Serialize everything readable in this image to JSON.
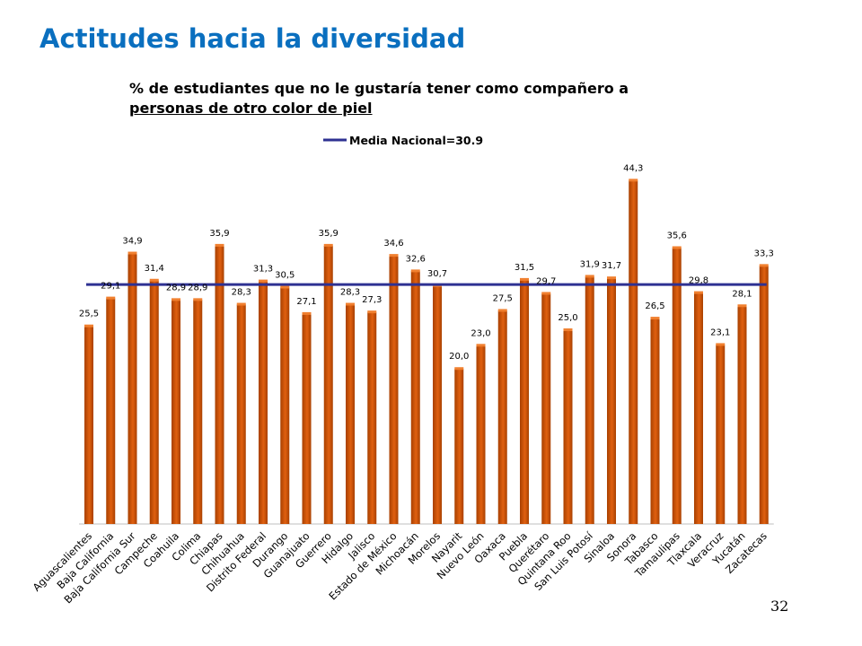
{
  "page": {
    "title": "Actitudes hacia la diversidad",
    "subtitle_line1": "% de estudiantes que no le gustaría tener como compañero a",
    "subtitle_line2": "personas de otro color de piel",
    "page_number": "32"
  },
  "chart_data": {
    "type": "bar",
    "categories": [
      "Aguascalientes",
      "Baja California",
      "Baja California Sur",
      "Campeche",
      "Coahuila",
      "Colima",
      "Chiapas",
      "Chihuahua",
      "Distrito Federal",
      "Durango",
      "Guanajuato",
      "Guerrero",
      "Hidalgo",
      "Jalisco",
      "Estado de México",
      "Michoacán",
      "Morelos",
      "Nayarit",
      "Nuevo León",
      "Oaxaca",
      "Puebla",
      "Querétaro",
      "Quintana Roo",
      "San Luis Potosí",
      "Sinaloa",
      "Sonora",
      "Tabasco",
      "Tamaulipas",
      "Tlaxcala",
      "Veracruz",
      "Yucatán",
      "Zacatecas"
    ],
    "values": [
      25.5,
      29.1,
      34.9,
      31.4,
      28.9,
      28.9,
      35.9,
      28.3,
      31.3,
      30.5,
      27.1,
      35.9,
      28.3,
      27.3,
      34.6,
      32.6,
      30.7,
      20.0,
      23.0,
      27.5,
      31.5,
      29.7,
      25.0,
      31.9,
      31.7,
      44.3,
      26.5,
      35.6,
      29.8,
      23.1,
      28.1,
      33.3
    ],
    "value_labels": [
      "25,5",
      "29,1",
      "34,9",
      "31,4",
      "28,9",
      "28,9",
      "35,9",
      "28,3",
      "31,3",
      "30,5",
      "27,1",
      "35,9",
      "28,3",
      "27,3",
      "34,6",
      "32,6",
      "30,7",
      "20,0",
      "23,0",
      "27,5",
      "31,5",
      "29,7",
      "25,0",
      "31,9",
      "31,7",
      "44,3",
      "26,5",
      "35,6",
      "29,8",
      "23,1",
      "28,1",
      "33,3"
    ],
    "reference_line": {
      "value": 30.9,
      "label": "Media Nacional=30.9",
      "color": "#2e3192"
    },
    "ylim": [
      0,
      47
    ],
    "bar_color": "#e06010",
    "bar_color_dark": "#a84000",
    "grid": false,
    "legend_position": "top-center"
  }
}
